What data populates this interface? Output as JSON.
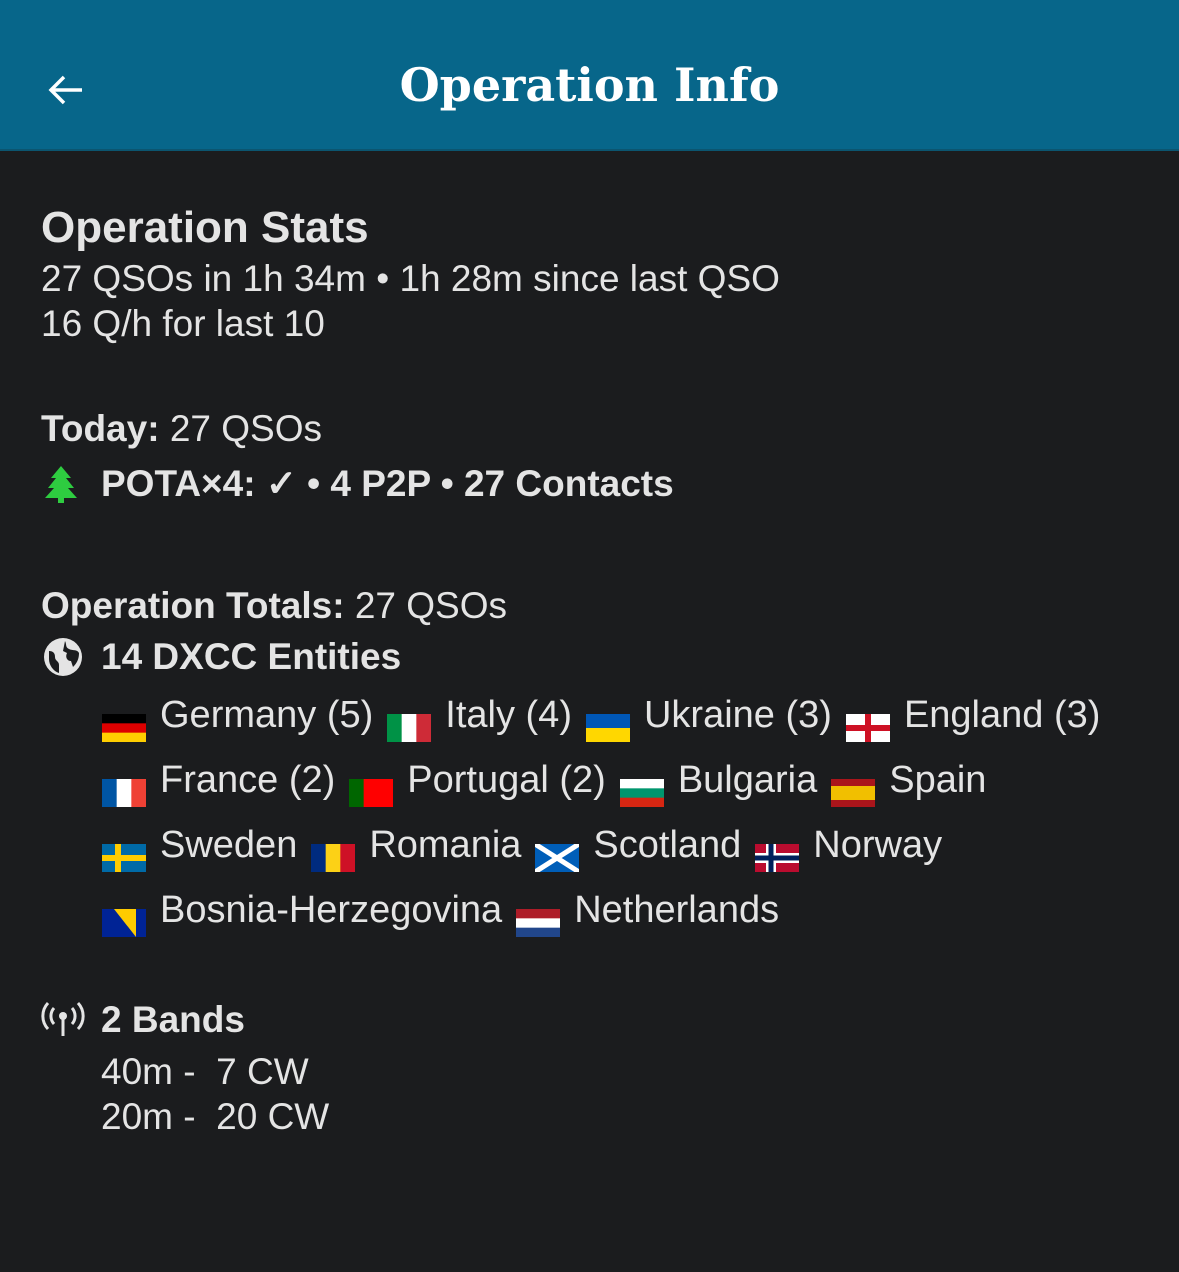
{
  "header": {
    "title": "Operation Info",
    "back_icon": "arrow-left-icon",
    "bg_color": "#07668a"
  },
  "stats": {
    "heading": "Operation Stats",
    "line1": "27 QSOs in 1h 34m • 1h 28m since last QSO",
    "line2": "16 Q/h for last 10"
  },
  "today": {
    "label": "Today:",
    "value": " 27 QSOs"
  },
  "pota": {
    "icon": "tree-icon",
    "text": "POTA×4: ✓ • 4 P2P • 27 Contacts",
    "icon_color": "#2ecc40"
  },
  "totals": {
    "label": "Operation Totals:",
    "value": " 27 QSOs"
  },
  "dxcc": {
    "icon": "globe-icon",
    "heading": "14 DXCC Entities",
    "entities": [
      {
        "name": "Germany (5)",
        "flag": {
          "dir": "h",
          "colors": [
            "#000000",
            "#dd0000",
            "#ffce00"
          ]
        }
      },
      {
        "name": "Italy (4)",
        "flag": {
          "dir": "v",
          "colors": [
            "#009246",
            "#ffffff",
            "#ce2b37"
          ]
        }
      },
      {
        "name": "Ukraine (3)",
        "flag": {
          "dir": "h",
          "colors": [
            "#0057b7",
            "#ffd700"
          ]
        }
      },
      {
        "name": "England (3)",
        "flag": {
          "cross": "st-george",
          "colors": [
            "#ffffff",
            "#ce1124"
          ]
        }
      },
      {
        "name": "France (2)",
        "flag": {
          "dir": "v",
          "colors": [
            "#0055a4",
            "#ffffff",
            "#ef4135"
          ]
        }
      },
      {
        "name": "Portugal (2)",
        "flag": {
          "dir": "v",
          "colors": [
            "#006600",
            "#ff0000",
            "#ff0000"
          ]
        }
      },
      {
        "name": "Bulgaria",
        "flag": {
          "dir": "h",
          "colors": [
            "#ffffff",
            "#00966e",
            "#d62612"
          ]
        }
      },
      {
        "name": "Spain",
        "flag": {
          "dir": "h",
          "colors": [
            "#aa151b",
            "#f1bf00",
            "#f1bf00",
            "#aa151b"
          ]
        }
      },
      {
        "name": "Sweden",
        "flag": {
          "cross": "nordic",
          "colors": [
            "#006aa7",
            "#fecc00"
          ]
        }
      },
      {
        "name": "Romania",
        "flag": {
          "dir": "v",
          "colors": [
            "#002b7f",
            "#fcd116",
            "#ce1126"
          ]
        }
      },
      {
        "name": "Scotland",
        "flag": {
          "cross": "saltire",
          "colors": [
            "#005eb8",
            "#ffffff"
          ]
        }
      },
      {
        "name": "Norway",
        "flag": {
          "cross": "nordic2",
          "colors": [
            "#ba0c2f",
            "#ffffff",
            "#00205b"
          ]
        }
      },
      {
        "name": "Bosnia-Herzegovina",
        "flag": {
          "cross": "bosnia",
          "colors": [
            "#002395",
            "#fecb00"
          ]
        }
      },
      {
        "name": "Netherlands",
        "flag": {
          "dir": "h",
          "colors": [
            "#ae1c28",
            "#ffffff",
            "#21468b"
          ]
        }
      }
    ]
  },
  "bands": {
    "icon": "antenna-icon",
    "heading": "2 Bands",
    "items": [
      "40m -  7 CW",
      "20m -  20 CW"
    ]
  }
}
